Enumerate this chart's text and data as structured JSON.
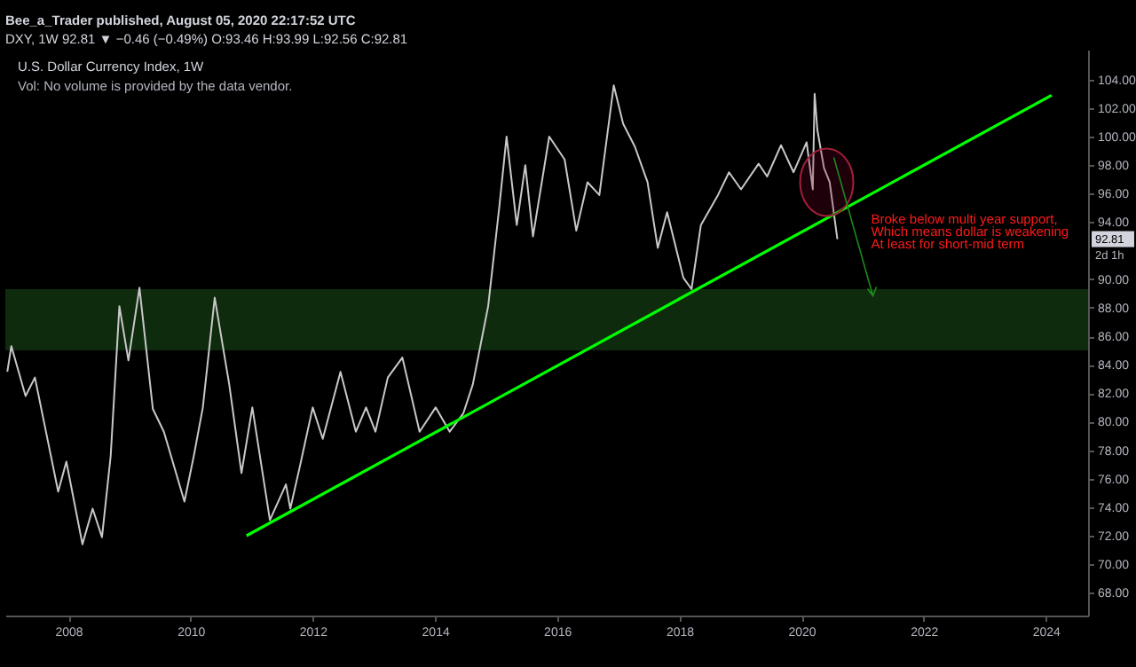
{
  "chart_data": {
    "type": "line",
    "title": "Bee_a_Trader published, August 05, 2020 22:17:52 UTC",
    "subtitle": "DXY, 1W  92.81 ▼ −0.46 (−0.49%) O:93.46 H:93.99 L:92.56 C:92.81",
    "x": [
      "2007-01-01",
      "2007-01-25",
      "2007-04-20",
      "2007-06-15",
      "2007-11-01",
      "2007-12-20",
      "2008-03-25",
      "2008-05-25",
      "2008-07-20",
      "2008-09-10",
      "2008-11-01",
      "2008-12-25",
      "2009-03-01",
      "2009-05-20",
      "2009-07-25",
      "2009-11-25",
      "2010-01-20",
      "2010-03-15",
      "2010-05-25",
      "2010-08-20",
      "2010-11-01",
      "2011-01-05",
      "2011-04-20",
      "2011-07-25",
      "2011-08-20",
      "2011-10-15",
      "2012-01-01",
      "2012-03-01",
      "2012-06-15",
      "2012-09-15",
      "2012-11-15",
      "2013-01-10",
      "2013-03-25",
      "2013-06-20",
      "2013-10-01",
      "2014-01-05",
      "2014-03-30",
      "2014-06-20",
      "2014-08-15",
      "2014-11-15",
      "2015-01-20",
      "2015-03-05",
      "2015-05-05",
      "2015-06-25",
      "2015-08-10",
      "2015-11-15",
      "2016-02-15",
      "2016-04-25",
      "2016-07-01",
      "2016-09-10",
      "2016-12-05",
      "2017-01-30",
      "2017-04-10",
      "2017-06-25",
      "2017-08-25",
      "2017-10-20",
      "2018-01-25",
      "2018-03-15",
      "2018-05-10",
      "2018-08-20",
      "2018-10-25",
      "2019-01-05",
      "2019-04-20",
      "2019-06-10",
      "2019-09-01",
      "2019-11-15",
      "2020-02-01",
      "2020-03-09",
      "2020-03-20",
      "2020-04-05",
      "2020-05-15",
      "2020-06-18",
      "2020-08-03"
    ],
    "series": [
      {
        "color": "#c8c8c8",
        "values": [
          83.5,
          85.3,
          81.8,
          83.1,
          75.1,
          77.2,
          71.4,
          73.9,
          71.9,
          77.6,
          88.1,
          84.3,
          89.4,
          80.9,
          79.3,
          74.4,
          77.6,
          81.0,
          88.7,
          82.6,
          76.4,
          81.0,
          73.1,
          75.6,
          73.9,
          76.8,
          81.0,
          78.8,
          83.5,
          79.3,
          81.0,
          79.3,
          83.1,
          84.5,
          79.3,
          81.0,
          79.3,
          80.6,
          82.6,
          88.1,
          95.0,
          100.0,
          93.8,
          98.0,
          93.0,
          100.0,
          98.4,
          93.4,
          96.8,
          95.9,
          103.6,
          100.9,
          99.3,
          96.8,
          92.2,
          94.7,
          90.1,
          89.3,
          93.8,
          95.9,
          97.5,
          96.3,
          98.1,
          97.2,
          99.4,
          97.5,
          99.6,
          96.3,
          103.0,
          100.5,
          97.8,
          96.8,
          92.81
        ]
      },
      {
        "type": "line",
        "color": "#00ff00",
        "x": [
          "2010-12-01",
          "2024-02-05"
        ],
        "values": [
          72.0,
          102.9
        ]
      }
    ],
    "xlim": [
      "2006-12-20",
      "2024-09-10"
    ],
    "xticks": [
      "2008",
      "2010",
      "2012",
      "2014",
      "2016",
      "2018",
      "2020",
      "2022",
      "2024"
    ],
    "ylim": [
      66.4,
      106.1
    ],
    "yticks": [
      {
        "value": 68,
        "label": "68.00"
      },
      {
        "value": 70,
        "label": "70.00"
      },
      {
        "value": 72,
        "label": "72.00"
      },
      {
        "value": 74,
        "label": "74.00"
      },
      {
        "value": 76,
        "label": "76.00"
      },
      {
        "value": 78,
        "label": "78.00"
      },
      {
        "value": 80,
        "label": "80.00"
      },
      {
        "value": 82,
        "label": "82.00"
      },
      {
        "value": 84,
        "label": "84.00"
      },
      {
        "value": 86,
        "label": "86.00"
      },
      {
        "value": 88,
        "label": "88.00"
      },
      {
        "value": 90,
        "label": "90.00"
      },
      {
        "value": 94,
        "label": "94.00"
      },
      {
        "value": 96,
        "label": "96.00"
      },
      {
        "value": 98,
        "label": "98.00"
      },
      {
        "value": 100,
        "label": "100.00"
      },
      {
        "value": 102,
        "label": "102.00"
      },
      {
        "value": 104,
        "label": "104.00"
      }
    ],
    "bands": [
      {
        "axis": "y",
        "from": 85.0,
        "to": 89.3,
        "color": "#0e2b0e"
      }
    ],
    "annotations": [
      "U.S. Dollar Currency Index, 1W",
      "Vol: No volume is provided by the data vendor.",
      "Broke below multi year support,",
      "Which means dollar is weakening",
      "At least for short-mid term",
      "92.81",
      "2d 1h"
    ],
    "grid": false,
    "marker": "none"
  }
}
